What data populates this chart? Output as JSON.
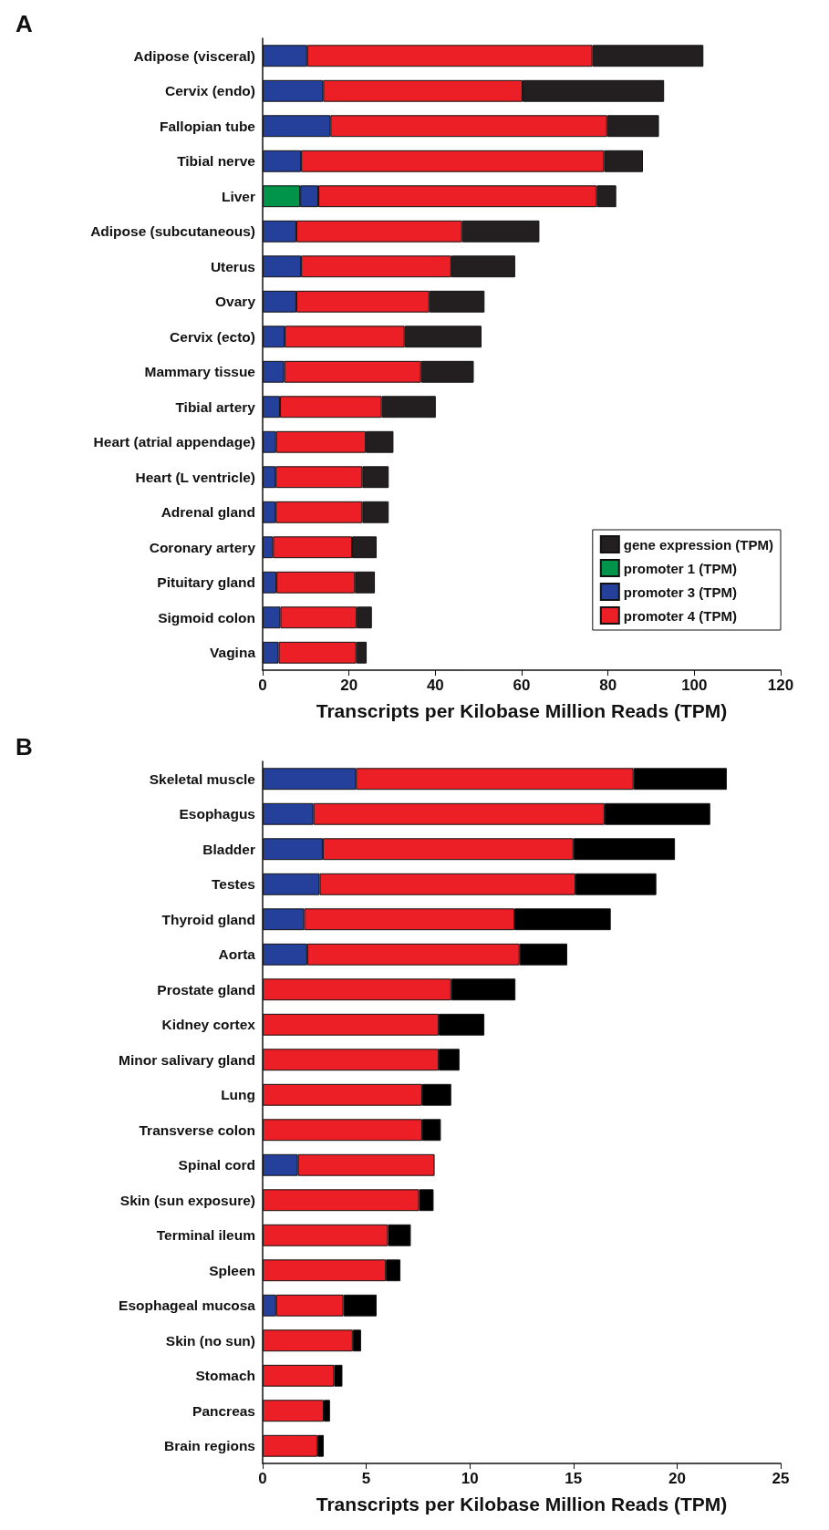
{
  "chart_data": [
    {
      "type": "bar",
      "title": "A",
      "orientation": "horizontal",
      "stacked": true,
      "xlabel": "Transcripts per Kilobase Million Reads (TPM)",
      "xlim": [
        0,
        120
      ],
      "xticks": [
        0,
        20,
        40,
        60,
        80,
        100,
        120
      ],
      "grid": false,
      "legend": "bottom right",
      "categories": [
        "Adipose (visceral)",
        "Cervix (endo)",
        "Fallopian tube",
        "Tibial nerve",
        "Liver",
        "Adipose (subcutaneous)",
        "Uterus",
        "Ovary",
        "Cervix (ecto)",
        "Mammary tissue",
        "Tibial artery",
        "Heart (atrial appendage)",
        "Heart (L ventricle)",
        "Adrenal gland",
        "Coronary artery",
        "Pituitary gland",
        "Sigmoid colon",
        "Vagina"
      ],
      "series": [
        {
          "name": "promoter 1 (TPM)",
          "color": "#00934a",
          "values": [
            0,
            0,
            0,
            0,
            8.7,
            0,
            0,
            0,
            0,
            0,
            0,
            0,
            0,
            0,
            0,
            0,
            0,
            0
          ]
        },
        {
          "name": "promoter 3 (TPM)",
          "color": "#24409a",
          "values": [
            10.3,
            14.0,
            15.7,
            8.9,
            4.2,
            7.8,
            8.9,
            7.8,
            5.1,
            5.0,
            4.0,
            3.1,
            3.0,
            3.0,
            2.4,
            3.2,
            4.1,
            3.7
          ]
        },
        {
          "name": "promoter 4 (TPM)",
          "color": "#ec1f26",
          "values": [
            66.1,
            46.2,
            64.1,
            70.2,
            64.5,
            38.4,
            34.8,
            30.8,
            27.8,
            31.7,
            23.6,
            20.8,
            20.1,
            20.1,
            18.3,
            18.2,
            17.7,
            18.0
          ]
        },
        {
          "name": "gene expression (TPM)",
          "color": "#231f20",
          "values": [
            25.7,
            32.8,
            12.0,
            9.0,
            4.5,
            17.9,
            14.8,
            12.8,
            17.8,
            12.2,
            12.5,
            6.4,
            6.1,
            6.1,
            5.7,
            4.6,
            3.5,
            2.4
          ]
        }
      ]
    },
    {
      "type": "bar",
      "title": "B",
      "orientation": "horizontal",
      "stacked": true,
      "xlabel": "Transcripts per Kilobase Million Reads (TPM)",
      "xlim": [
        0,
        25
      ],
      "xticks": [
        0,
        5,
        10,
        15,
        20,
        25
      ],
      "grid": false,
      "legend": false,
      "categories": [
        "Skeletal muscle",
        "Esophagus",
        "Bladder",
        "Testes",
        "Thyroid gland",
        "Aorta",
        "Prostate gland",
        "Kidney cortex",
        "Minor salivary gland",
        "Lung",
        "Transverse colon",
        "Spinal cord",
        "Skin (sun exposure)",
        "Terminal ileum",
        "Spleen",
        "Esophageal mucosa",
        "Skin (no sun)",
        "Stomach",
        "Pancreas",
        "Brain regions"
      ],
      "series": [
        {
          "color": "#24409a",
          "values": [
            4.5,
            2.45,
            2.9,
            2.75,
            2.0,
            2.15,
            0,
            0,
            0,
            0,
            0,
            1.7,
            0,
            0,
            0,
            0.65,
            0,
            0,
            0,
            0
          ]
        },
        {
          "color": "#ec1f26",
          "values": [
            13.4,
            14.05,
            12.1,
            12.35,
            10.15,
            10.25,
            9.1,
            8.5,
            8.5,
            7.7,
            7.7,
            6.6,
            7.55,
            6.05,
            5.95,
            3.25,
            4.35,
            3.45,
            2.95,
            2.65
          ]
        },
        {
          "color": "#000000",
          "values": [
            4.5,
            5.1,
            4.9,
            3.9,
            4.65,
            2.3,
            3.1,
            2.2,
            1.0,
            1.4,
            0.9,
            0,
            0.7,
            1.1,
            0.7,
            1.6,
            0.4,
            0.4,
            0.3,
            0.3
          ]
        }
      ]
    }
  ]
}
